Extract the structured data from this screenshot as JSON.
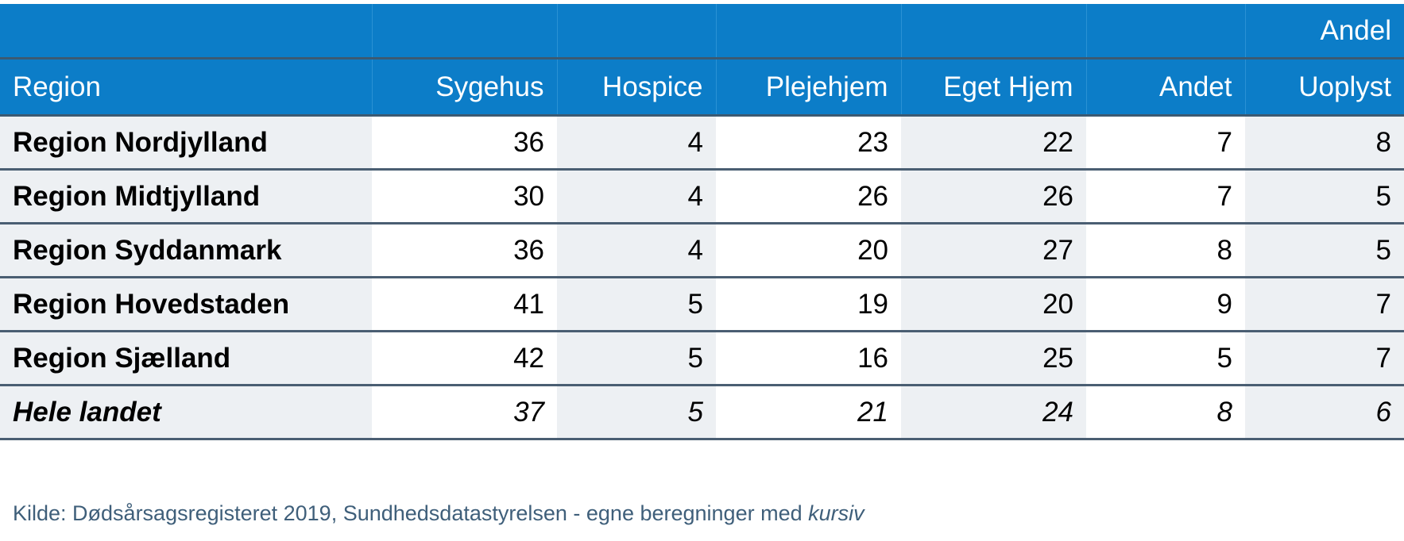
{
  "chart_data": {
    "type": "table",
    "unit_label": "Andel",
    "columns": [
      "Region",
      "Sygehus",
      "Hospice",
      "Plejehjem",
      "Eget Hjem",
      "Andet",
      "Uoplyst"
    ],
    "rows": [
      {
        "label": "Region Nordjylland",
        "values": [
          "36",
          "4",
          "23",
          "22",
          "7",
          "8"
        ]
      },
      {
        "label": "Region Midtjylland",
        "values": [
          "30",
          "4",
          "26",
          "26",
          "7",
          "5"
        ]
      },
      {
        "label": "Region Syddanmark",
        "values": [
          "36",
          "4",
          "20",
          "27",
          "8",
          "5"
        ]
      },
      {
        "label": "Region Hovedstaden",
        "values": [
          "41",
          "5",
          "19",
          "20",
          "9",
          "7"
        ]
      },
      {
        "label": "Region Sjælland",
        "values": [
          "42",
          "5",
          "16",
          "25",
          "5",
          "7"
        ]
      },
      {
        "label": "Hele landet",
        "values": [
          "37",
          "5",
          "21",
          "24",
          "8",
          "6"
        ]
      }
    ],
    "source_prefix": "Kilde: Dødsårsagsregisteret 2019, Sundhedsdatastyrelsen - egne beregninger med ",
    "source_italic": "kursiv",
    "colors": {
      "header_bg": "#0c7dc8",
      "header_text": "#ffffff",
      "shaded_cell": "#edf0f3",
      "rule": "#4a5e72",
      "source_text": "#3f5f7a"
    }
  }
}
